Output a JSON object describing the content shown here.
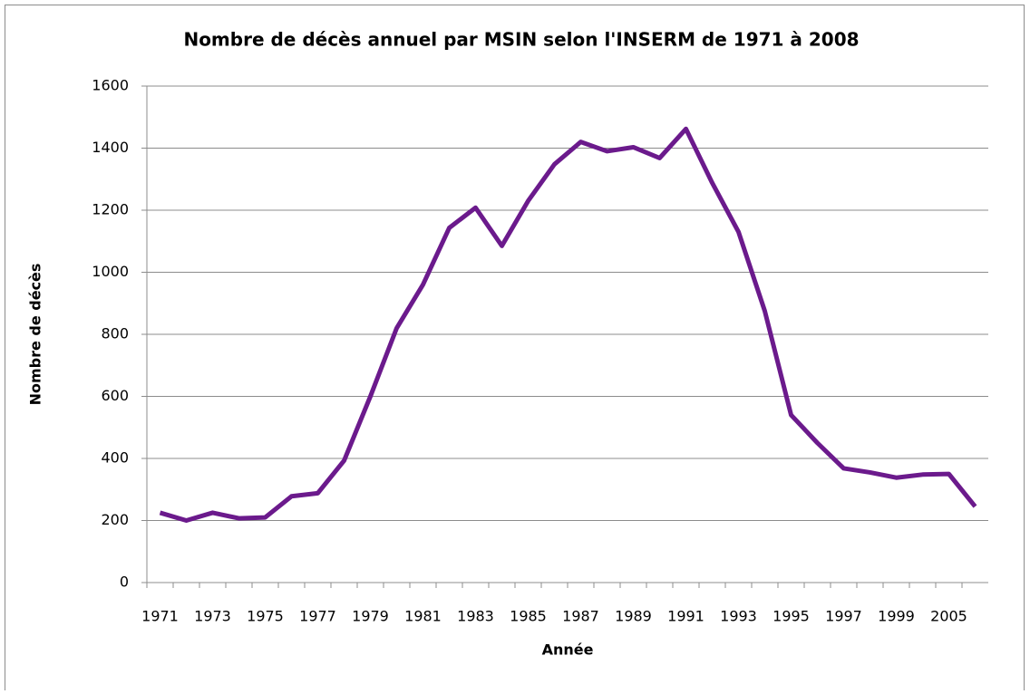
{
  "chart_data": {
    "type": "line",
    "title": "Nombre de décès annuel par MSIN selon l'INSERM de 1971 à 2008",
    "x_label": "Année",
    "y_label": "Nombre de décès",
    "categories": [
      "1971",
      null,
      "1973",
      null,
      "1975",
      null,
      "1977",
      null,
      "1979",
      null,
      "1981",
      null,
      "1983",
      null,
      "1985",
      null,
      "1987",
      null,
      "1989",
      null,
      "1991",
      null,
      "1993",
      null,
      "1995",
      null,
      "1997",
      null,
      "1999",
      null,
      "2005",
      null
    ],
    "series": [
      {
        "name": "Nombre de décès",
        "color": "#6b1a8c",
        "values": [
          225,
          200,
          225,
          207,
          210,
          278,
          288,
          393,
          600,
          820,
          960,
          1143,
          1208,
          1085,
          1230,
          1348,
          1420,
          1390,
          1403,
          1368,
          1462,
          1288,
          1130,
          875,
          540,
          450,
          368,
          355,
          338,
          348,
          350,
          245
        ]
      }
    ],
    "ylim": [
      0,
      1600
    ],
    "yticks": [
      0,
      200,
      400,
      600,
      800,
      1000,
      1200,
      1400,
      1600
    ],
    "grid": true
  }
}
